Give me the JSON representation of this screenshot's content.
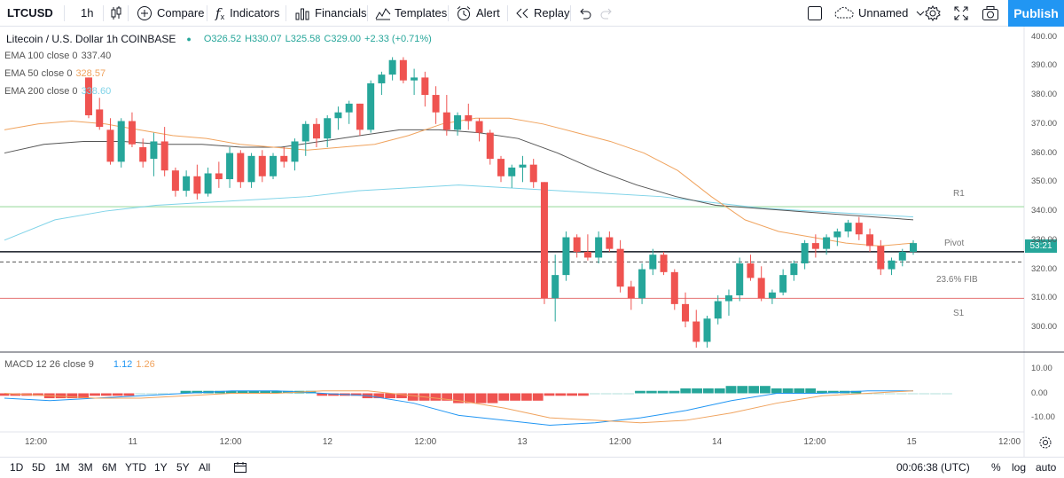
{
  "toolbar": {
    "symbol": "LTCUSD",
    "interval": "1h",
    "compare": "Compare",
    "indicators": "Indicators",
    "financials": "Financials",
    "templates": "Templates",
    "alert": "Alert",
    "replay": "Replay",
    "layout_name": "Unnamed",
    "publish": "Publish"
  },
  "legend": {
    "title": "Litecoin / U.S. Dollar  1h  COINBASE",
    "o": "O326.52",
    "h": "H330.07",
    "l": "L325.58",
    "c": "C329.00",
    "change": "+2.33 (+0.71%)",
    "ema100_label": "EMA 100 close 0",
    "ema100_val": "337.40",
    "ema50_label": "EMA 50 close 0",
    "ema50_val": "328.57",
    "ema200_label": "EMA 200 close 0",
    "ema200_val": "338.60",
    "macd_label": "MACD 12 26 close 9",
    "macd_val1": "1.12",
    "macd_val2": "1.26"
  },
  "colors": {
    "up": "#26a69a",
    "down": "#ef5350",
    "ema50": "#f0a35e",
    "ema100": "#555555",
    "ema200": "#7fd3e8",
    "r1": "#b7e4b9",
    "s1": "#e57373",
    "pivot": "#131722",
    "fib": "#555555",
    "publish": "#2196f3"
  },
  "price_axis": [
    "400.00",
    "390.00",
    "380.00",
    "370.00",
    "360.00",
    "350.00",
    "340.00",
    "330.00",
    "320.00",
    "310.00",
    "300.00"
  ],
  "price_current": "53:21",
  "macd_axis": [
    "10.00",
    "0.00",
    "-10.00"
  ],
  "time_axis": [
    "12:00",
    "11",
    "12:00",
    "12",
    "12:00",
    "13",
    "12:00",
    "14",
    "12:00",
    "15",
    "12:00"
  ],
  "levels": {
    "r1": "R1",
    "pivot": "Pivot",
    "fib": "23.6% FIB",
    "s1": "S1"
  },
  "bottombar": {
    "ranges": [
      "1D",
      "5D",
      "1M",
      "3M",
      "6M",
      "YTD",
      "1Y",
      "5Y",
      "All"
    ],
    "clock": "00:06:38 (UTC)",
    "pct": "%",
    "log": "log",
    "auto": "auto"
  },
  "chart_data": {
    "type": "candlestick",
    "symbol": "LTCUSD",
    "interval": "1h",
    "candles": [
      [
        386,
        386,
        372,
        373
      ],
      [
        375,
        379,
        368,
        369
      ],
      [
        368,
        372,
        356,
        357
      ],
      [
        357,
        372,
        355,
        371
      ],
      [
        371,
        374,
        362,
        363
      ],
      [
        362,
        365,
        355,
        357
      ],
      [
        358,
        367,
        352,
        364
      ],
      [
        364,
        369,
        352,
        354
      ],
      [
        354,
        355,
        345,
        347
      ],
      [
        347,
        354,
        345,
        352
      ],
      [
        352,
        356,
        344,
        346
      ],
      [
        346,
        355,
        345,
        353
      ],
      [
        353,
        357,
        348,
        351
      ],
      [
        351,
        362,
        348,
        360
      ],
      [
        360,
        361,
        348,
        350
      ],
      [
        350,
        360,
        348,
        359
      ],
      [
        359,
        361,
        350,
        352
      ],
      [
        352,
        360,
        351,
        359
      ],
      [
        359,
        362,
        355,
        357
      ],
      [
        357,
        365,
        354,
        364
      ],
      [
        364,
        371,
        359,
        370
      ],
      [
        370,
        372,
        362,
        365
      ],
      [
        365,
        373,
        362,
        372
      ],
      [
        372,
        376,
        368,
        374
      ],
      [
        374,
        378,
        370,
        377
      ],
      [
        377,
        377,
        366,
        368
      ],
      [
        368,
        385,
        367,
        384
      ],
      [
        384,
        388,
        380,
        387
      ],
      [
        387,
        393,
        385,
        392
      ],
      [
        392,
        393,
        384,
        385
      ],
      [
        385,
        389,
        380,
        386
      ],
      [
        386,
        388,
        376,
        380
      ],
      [
        380,
        383,
        370,
        374
      ],
      [
        374,
        380,
        366,
        368
      ],
      [
        368,
        374,
        366,
        373
      ],
      [
        373,
        377,
        368,
        371
      ],
      [
        371,
        372,
        364,
        367
      ],
      [
        367,
        368,
        356,
        358
      ],
      [
        358,
        359,
        350,
        352
      ],
      [
        352,
        356,
        348,
        355
      ],
      [
        355,
        359,
        350,
        356
      ],
      [
        356,
        358,
        348,
        350
      ],
      [
        350,
        350,
        308,
        310
      ],
      [
        310,
        325,
        302,
        318
      ],
      [
        318,
        333,
        316,
        331
      ],
      [
        331,
        332,
        324,
        326
      ],
      [
        326,
        332,
        323,
        324
      ],
      [
        324,
        333,
        322,
        331
      ],
      [
        331,
        333,
        326,
        327
      ],
      [
        327,
        330,
        312,
        314
      ],
      [
        314,
        316,
        306,
        310
      ],
      [
        310,
        322,
        308,
        320
      ],
      [
        320,
        327,
        318,
        325
      ],
      [
        325,
        326,
        318,
        319
      ],
      [
        319,
        320,
        306,
        308
      ],
      [
        308,
        312,
        300,
        302
      ],
      [
        302,
        306,
        293,
        295
      ],
      [
        295,
        304,
        293,
        303
      ],
      [
        303,
        311,
        301,
        309
      ],
      [
        309,
        313,
        304,
        311
      ],
      [
        311,
        324,
        309,
        322
      ],
      [
        322,
        325,
        316,
        317
      ],
      [
        317,
        321,
        309,
        310
      ],
      [
        310,
        313,
        308,
        312
      ],
      [
        312,
        320,
        311,
        318
      ],
      [
        318,
        323,
        316,
        322
      ],
      [
        322,
        330,
        320,
        329
      ],
      [
        329,
        332,
        324,
        327
      ],
      [
        327,
        332,
        325,
        331
      ],
      [
        331,
        334,
        328,
        333
      ],
      [
        333,
        337,
        331,
        336
      ],
      [
        336,
        338,
        330,
        332
      ],
      [
        332,
        334,
        326,
        328
      ],
      [
        328,
        330,
        318,
        320
      ],
      [
        320,
        324,
        318,
        323
      ],
      [
        323,
        327,
        321,
        326
      ],
      [
        326,
        330,
        325,
        329
      ]
    ],
    "ema50": [
      368,
      370,
      371,
      370,
      368,
      366,
      365,
      363,
      362,
      361,
      362,
      363,
      366,
      370,
      372,
      372,
      370,
      367,
      364,
      360,
      354,
      345,
      337,
      333,
      331,
      329,
      328,
      329
    ],
    "ema100": [
      360,
      363,
      364,
      364,
      363,
      363,
      362,
      362,
      364,
      366,
      368,
      368,
      367,
      365,
      360,
      354,
      349,
      345,
      342,
      341,
      340,
      339,
      338,
      337
    ],
    "ema200": [
      330,
      337,
      340,
      342,
      343,
      344,
      345,
      347,
      348,
      349,
      348,
      347,
      346,
      345,
      343,
      341,
      340,
      339,
      338
    ],
    "levels": {
      "R1": 341.5,
      "Pivot": 326,
      "23.6% FIB": 322.5,
      "S1": 310
    },
    "ylim": [
      293,
      402
    ],
    "macd": [
      -2,
      -3,
      -2,
      -1,
      0,
      1,
      1,
      0,
      -1,
      -4,
      -9,
      -11,
      -13,
      -12,
      -10,
      -7,
      -3,
      0,
      0,
      1,
      1
    ],
    "macd_signal": [
      0,
      -1,
      -2,
      -2,
      -1,
      0,
      0,
      1,
      1,
      -1,
      -3,
      -6,
      -10,
      -11,
      -12,
      -11,
      -8,
      -4,
      -1,
      0,
      1
    ],
    "macd_hist": [
      -1,
      -2,
      -1,
      0,
      1,
      1,
      1,
      -1,
      -2,
      -3,
      -4,
      -3,
      -1,
      0,
      1,
      2,
      3,
      2,
      1,
      0,
      0
    ]
  }
}
